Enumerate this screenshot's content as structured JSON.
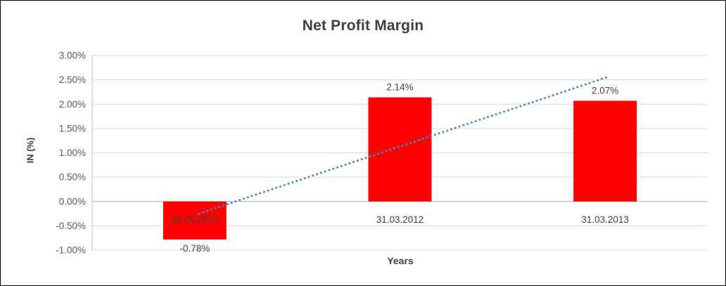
{
  "chart_data": {
    "type": "bar",
    "title": "Net Profit Margin",
    "xlabel": "Years",
    "ylabel": "IN (%)",
    "categories": [
      "31.03.2011",
      "31.03.2012",
      "31.03.2013"
    ],
    "values": [
      -0.78,
      2.14,
      2.07
    ],
    "data_labels": [
      "-0.78%",
      "2.14%",
      "2.07%"
    ],
    "ylim": [
      -1.0,
      3.0
    ],
    "ytick_step": 0.5,
    "ytick_labels": [
      "3.00%",
      "2.50%",
      "2.00%",
      "1.50%",
      "1.00%",
      "0.50%",
      "0.00%",
      "-0.50%",
      "-1.00%"
    ],
    "grid": "on",
    "legend": "none",
    "bar_color": "#ff0000",
    "grid_color": "#d9d9d9",
    "axis_color": "#bfbfbf",
    "tick_label_color": "#595959",
    "label_color": "#404040",
    "trendline": {
      "style": "dotted",
      "color": "#4a89c8",
      "start_value": -0.25,
      "end_value": 2.55
    }
  }
}
